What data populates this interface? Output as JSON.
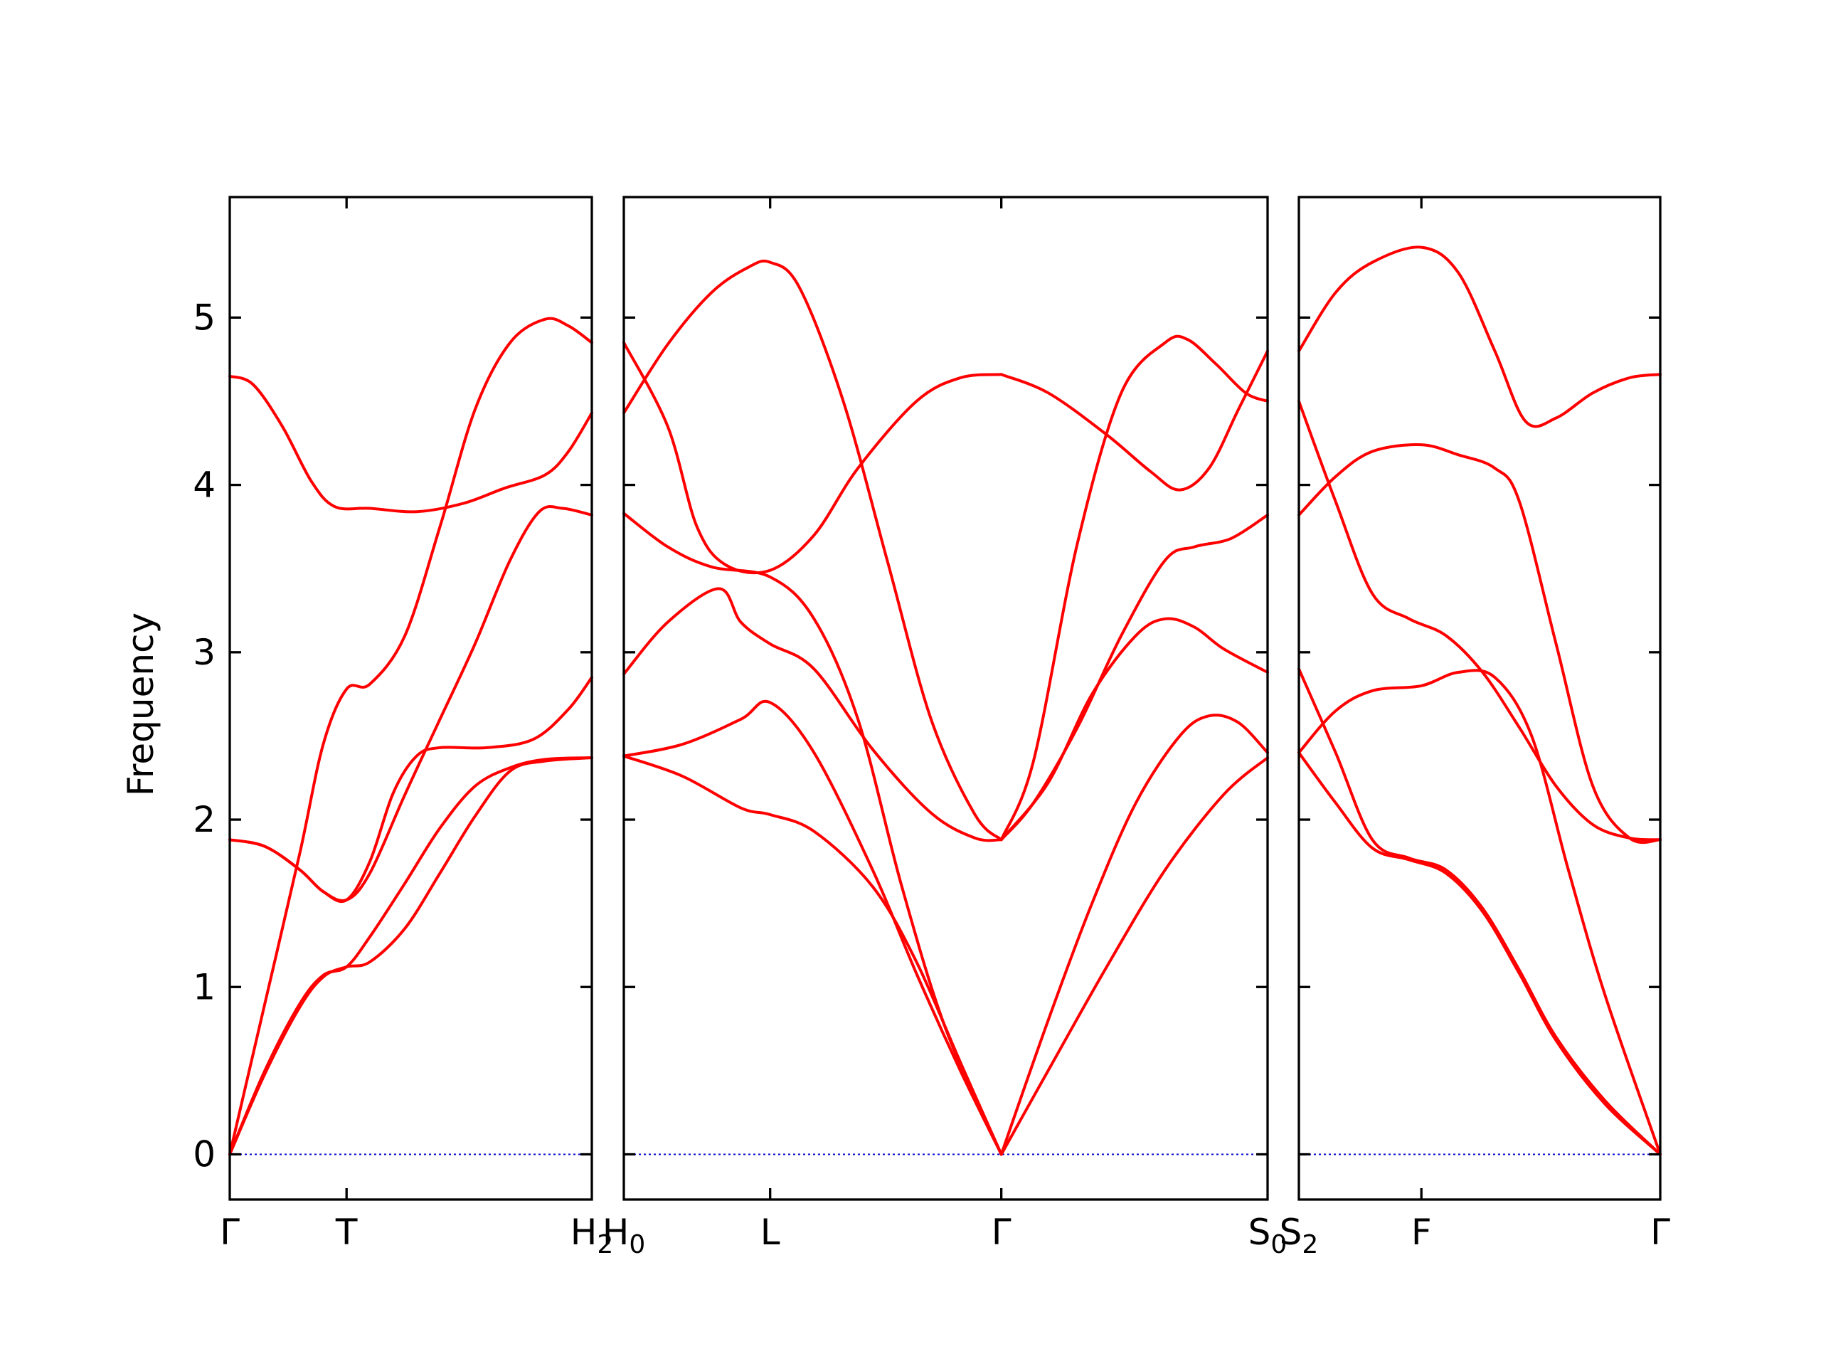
{
  "chart_data": {
    "type": "line",
    "title": "",
    "ylabel": "Frequency",
    "ylim": [
      -0.27,
      5.72
    ],
    "yticks": [
      "0",
      "1",
      "2",
      "3",
      "4",
      "5"
    ],
    "colors": {
      "band": "#ff0000",
      "zero_line": "#0000cc",
      "axis": "#000000"
    },
    "grid": false,
    "legend": "none",
    "panels": [
      {
        "xlim": [
          0,
          3.1
        ],
        "ticks": [
          {
            "x": 0,
            "label": "Γ",
            "sub": ""
          },
          {
            "x": 1,
            "label": "T",
            "sub": ""
          },
          {
            "x": 3.1,
            "label": "H",
            "sub": "2"
          }
        ],
        "bands": [
          [
            [
              0,
              0
            ],
            [
              0.3,
              0.48
            ],
            [
              0.6,
              0.88
            ],
            [
              0.8,
              1.06
            ],
            [
              1,
              1.12
            ],
            [
              1.2,
              1.15
            ],
            [
              1.5,
              1.35
            ],
            [
              1.8,
              1.68
            ],
            [
              2.1,
              2.02
            ],
            [
              2.4,
              2.29
            ],
            [
              2.7,
              2.35
            ],
            [
              3.1,
              2.37
            ]
          ],
          [
            [
              0,
              0
            ],
            [
              0.3,
              0.5
            ],
            [
              0.6,
              0.9
            ],
            [
              0.8,
              1.07
            ],
            [
              1,
              1.12
            ],
            [
              1.2,
              1.3
            ],
            [
              1.5,
              1.62
            ],
            [
              1.8,
              1.95
            ],
            [
              2.1,
              2.2
            ],
            [
              2.4,
              2.31
            ],
            [
              2.7,
              2.36
            ],
            [
              3.1,
              2.37
            ]
          ],
          [
            [
              0,
              1.88
            ],
            [
              0.3,
              1.84
            ],
            [
              0.6,
              1.7
            ],
            [
              0.8,
              1.57
            ],
            [
              1,
              1.52
            ],
            [
              1.2,
              1.75
            ],
            [
              1.4,
              2.16
            ],
            [
              1.6,
              2.38
            ],
            [
              1.8,
              2.43
            ],
            [
              2.2,
              2.43
            ],
            [
              2.6,
              2.48
            ],
            [
              2.9,
              2.66
            ],
            [
              3.1,
              2.85
            ]
          ],
          [
            [
              0,
              0
            ],
            [
              0.3,
              0.9
            ],
            [
              0.6,
              1.8
            ],
            [
              0.8,
              2.45
            ],
            [
              1,
              2.78
            ],
            [
              1.2,
              2.81
            ],
            [
              1.5,
              3.1
            ],
            [
              1.8,
              3.75
            ],
            [
              2.1,
              4.45
            ],
            [
              2.4,
              4.85
            ],
            [
              2.7,
              4.99
            ],
            [
              2.9,
              4.95
            ],
            [
              3.1,
              4.85
            ]
          ],
          [
            [
              0,
              1.88
            ],
            [
              0.3,
              1.84
            ],
            [
              0.6,
              1.7
            ],
            [
              0.8,
              1.57
            ],
            [
              1,
              1.52
            ],
            [
              1.2,
              1.68
            ],
            [
              1.5,
              2.15
            ],
            [
              1.8,
              2.6
            ],
            [
              2.1,
              3.05
            ],
            [
              2.4,
              3.55
            ],
            [
              2.65,
              3.84
            ],
            [
              2.85,
              3.86
            ],
            [
              3.1,
              3.82
            ]
          ],
          [
            [
              0,
              4.65
            ],
            [
              0.2,
              4.6
            ],
            [
              0.45,
              4.35
            ],
            [
              0.7,
              4.02
            ],
            [
              0.9,
              3.87
            ],
            [
              1.2,
              3.86
            ],
            [
              1.6,
              3.84
            ],
            [
              2,
              3.89
            ],
            [
              2.35,
              3.98
            ],
            [
              2.7,
              4.06
            ],
            [
              2.9,
              4.2
            ],
            [
              3.1,
              4.43
            ]
          ]
        ]
      },
      {
        "xlim": [
          0,
          4.4
        ],
        "ticks": [
          {
            "x": 0,
            "label": "H",
            "sub": "0"
          },
          {
            "x": 1,
            "label": "L",
            "sub": ""
          },
          {
            "x": 2.58,
            "label": "Γ",
            "sub": ""
          },
          {
            "x": 4.4,
            "label": "S",
            "sub": "0"
          }
        ],
        "bands": [
          [
            [
              0,
              2.38
            ],
            [
              0.4,
              2.26
            ],
            [
              0.8,
              2.07
            ],
            [
              1,
              2.03
            ],
            [
              1.3,
              1.93
            ],
            [
              1.7,
              1.6
            ],
            [
              2,
              1.15
            ],
            [
              2.3,
              0.55
            ],
            [
              2.58,
              0
            ]
          ],
          [
            [
              0,
              2.38
            ],
            [
              0.4,
              2.45
            ],
            [
              0.8,
              2.6
            ],
            [
              1,
              2.7
            ],
            [
              1.3,
              2.4
            ],
            [
              1.7,
              1.7
            ],
            [
              2,
              1.08
            ],
            [
              2.3,
              0.5
            ],
            [
              2.58,
              0
            ]
          ],
          [
            [
              0,
              2.87
            ],
            [
              0.3,
              3.18
            ],
            [
              0.65,
              3.38
            ],
            [
              0.8,
              3.18
            ],
            [
              1,
              3.05
            ],
            [
              1.3,
              2.9
            ],
            [
              1.7,
              2.42
            ],
            [
              2.1,
              2.04
            ],
            [
              2.4,
              1.89
            ],
            [
              2.58,
              1.88
            ]
          ],
          [
            [
              0,
              3.83
            ],
            [
              0.3,
              3.63
            ],
            [
              0.6,
              3.51
            ],
            [
              1,
              3.45
            ],
            [
              1.3,
              3.2
            ],
            [
              1.6,
              2.6
            ],
            [
              1.9,
              1.6
            ],
            [
              2.2,
              0.75
            ],
            [
              2.58,
              0
            ]
          ],
          [
            [
              0,
              4.43
            ],
            [
              0.3,
              4.84
            ],
            [
              0.6,
              5.15
            ],
            [
              0.85,
              5.3
            ],
            [
              1,
              5.33
            ],
            [
              1.2,
              5.18
            ],
            [
              1.5,
              4.5
            ],
            [
              1.8,
              3.55
            ],
            [
              2.1,
              2.6
            ],
            [
              2.4,
              2.03
            ],
            [
              2.58,
              1.88
            ]
          ],
          [
            [
              0,
              4.85
            ],
            [
              0.3,
              4.35
            ],
            [
              0.5,
              3.75
            ],
            [
              0.7,
              3.52
            ],
            [
              1,
              3.49
            ],
            [
              1.3,
              3.7
            ],
            [
              1.6,
              4.1
            ],
            [
              2,
              4.5
            ],
            [
              2.3,
              4.64
            ],
            [
              2.58,
              4.66
            ]
          ],
          [
            [
              2.58,
              0
            ],
            [
              2.9,
              0.5
            ],
            [
              3.3,
              1.12
            ],
            [
              3.7,
              1.7
            ],
            [
              4.1,
              2.15
            ],
            [
              4.4,
              2.37
            ]
          ],
          [
            [
              2.58,
              0
            ],
            [
              2.9,
              0.8
            ],
            [
              3.2,
              1.5
            ],
            [
              3.5,
              2.1
            ],
            [
              3.8,
              2.5
            ],
            [
              4,
              2.62
            ],
            [
              4.2,
              2.58
            ],
            [
              4.4,
              2.4
            ]
          ],
          [
            [
              2.58,
              1.88
            ],
            [
              2.9,
              2.22
            ],
            [
              3.2,
              2.75
            ],
            [
              3.5,
              3.1
            ],
            [
              3.7,
              3.2
            ],
            [
              3.9,
              3.15
            ],
            [
              4.1,
              3.02
            ],
            [
              4.4,
              2.88
            ]
          ],
          [
            [
              2.58,
              1.88
            ],
            [
              2.8,
              2.1
            ],
            [
              3.1,
              2.55
            ],
            [
              3.4,
              3.1
            ],
            [
              3.7,
              3.55
            ],
            [
              3.9,
              3.63
            ],
            [
              4.15,
              3.68
            ],
            [
              4.4,
              3.82
            ]
          ],
          [
            [
              2.58,
              1.88
            ],
            [
              2.8,
              2.35
            ],
            [
              3.1,
              3.65
            ],
            [
              3.4,
              4.55
            ],
            [
              3.7,
              4.85
            ],
            [
              3.85,
              4.87
            ],
            [
              4.05,
              4.72
            ],
            [
              4.25,
              4.55
            ],
            [
              4.4,
              4.5
            ]
          ],
          [
            [
              2.58,
              4.66
            ],
            [
              2.9,
              4.55
            ],
            [
              3.3,
              4.3
            ],
            [
              3.6,
              4.08
            ],
            [
              3.8,
              3.97
            ],
            [
              4,
              4.1
            ],
            [
              4.2,
              4.45
            ],
            [
              4.4,
              4.8
            ]
          ]
        ]
      },
      {
        "xlim": [
          0,
          2.95
        ],
        "ticks": [
          {
            "x": 0,
            "label": "S",
            "sub": "2"
          },
          {
            "x": 1,
            "label": "F",
            "sub": ""
          },
          {
            "x": 2.95,
            "label": "Γ",
            "sub": ""
          }
        ],
        "bands": [
          [
            [
              0,
              2.4
            ],
            [
              0.3,
              2.1
            ],
            [
              0.6,
              1.83
            ],
            [
              0.9,
              1.76
            ],
            [
              1.2,
              1.68
            ],
            [
              1.5,
              1.45
            ],
            [
              1.8,
              1.08
            ],
            [
              2.1,
              0.68
            ],
            [
              2.5,
              0.3
            ],
            [
              2.95,
              0
            ]
          ],
          [
            [
              0,
              2.9
            ],
            [
              0.3,
              2.4
            ],
            [
              0.6,
              1.88
            ],
            [
              0.9,
              1.77
            ],
            [
              1.2,
              1.7
            ],
            [
              1.5,
              1.47
            ],
            [
              1.8,
              1.1
            ],
            [
              2.1,
              0.7
            ],
            [
              2.5,
              0.32
            ],
            [
              2.95,
              0
            ]
          ],
          [
            [
              0,
              2.4
            ],
            [
              0.3,
              2.65
            ],
            [
              0.6,
              2.77
            ],
            [
              1,
              2.8
            ],
            [
              1.3,
              2.88
            ],
            [
              1.6,
              2.85
            ],
            [
              1.9,
              2.5
            ],
            [
              2.2,
              1.7
            ],
            [
              2.5,
              0.95
            ],
            [
              2.95,
              0
            ]
          ],
          [
            [
              0,
              4.5
            ],
            [
              0.3,
              3.9
            ],
            [
              0.6,
              3.35
            ],
            [
              0.9,
              3.2
            ],
            [
              1.2,
              3.1
            ],
            [
              1.5,
              2.88
            ],
            [
              1.8,
              2.55
            ],
            [
              2.1,
              2.2
            ],
            [
              2.4,
              1.97
            ],
            [
              2.7,
              1.89
            ],
            [
              2.95,
              1.88
            ]
          ],
          [
            [
              0,
              3.82
            ],
            [
              0.3,
              4.05
            ],
            [
              0.6,
              4.2
            ],
            [
              1,
              4.24
            ],
            [
              1.3,
              4.18
            ],
            [
              1.6,
              4.1
            ],
            [
              1.8,
              3.9
            ],
            [
              2.1,
              3.05
            ],
            [
              2.4,
              2.2
            ],
            [
              2.7,
              1.89
            ],
            [
              2.95,
              1.88
            ]
          ],
          [
            [
              0,
              4.8
            ],
            [
              0.3,
              5.15
            ],
            [
              0.6,
              5.33
            ],
            [
              1,
              5.42
            ],
            [
              1.3,
              5.27
            ],
            [
              1.6,
              4.8
            ],
            [
              1.85,
              4.38
            ],
            [
              2.1,
              4.4
            ],
            [
              2.4,
              4.55
            ],
            [
              2.7,
              4.64
            ],
            [
              2.95,
              4.66
            ]
          ]
        ]
      }
    ]
  }
}
